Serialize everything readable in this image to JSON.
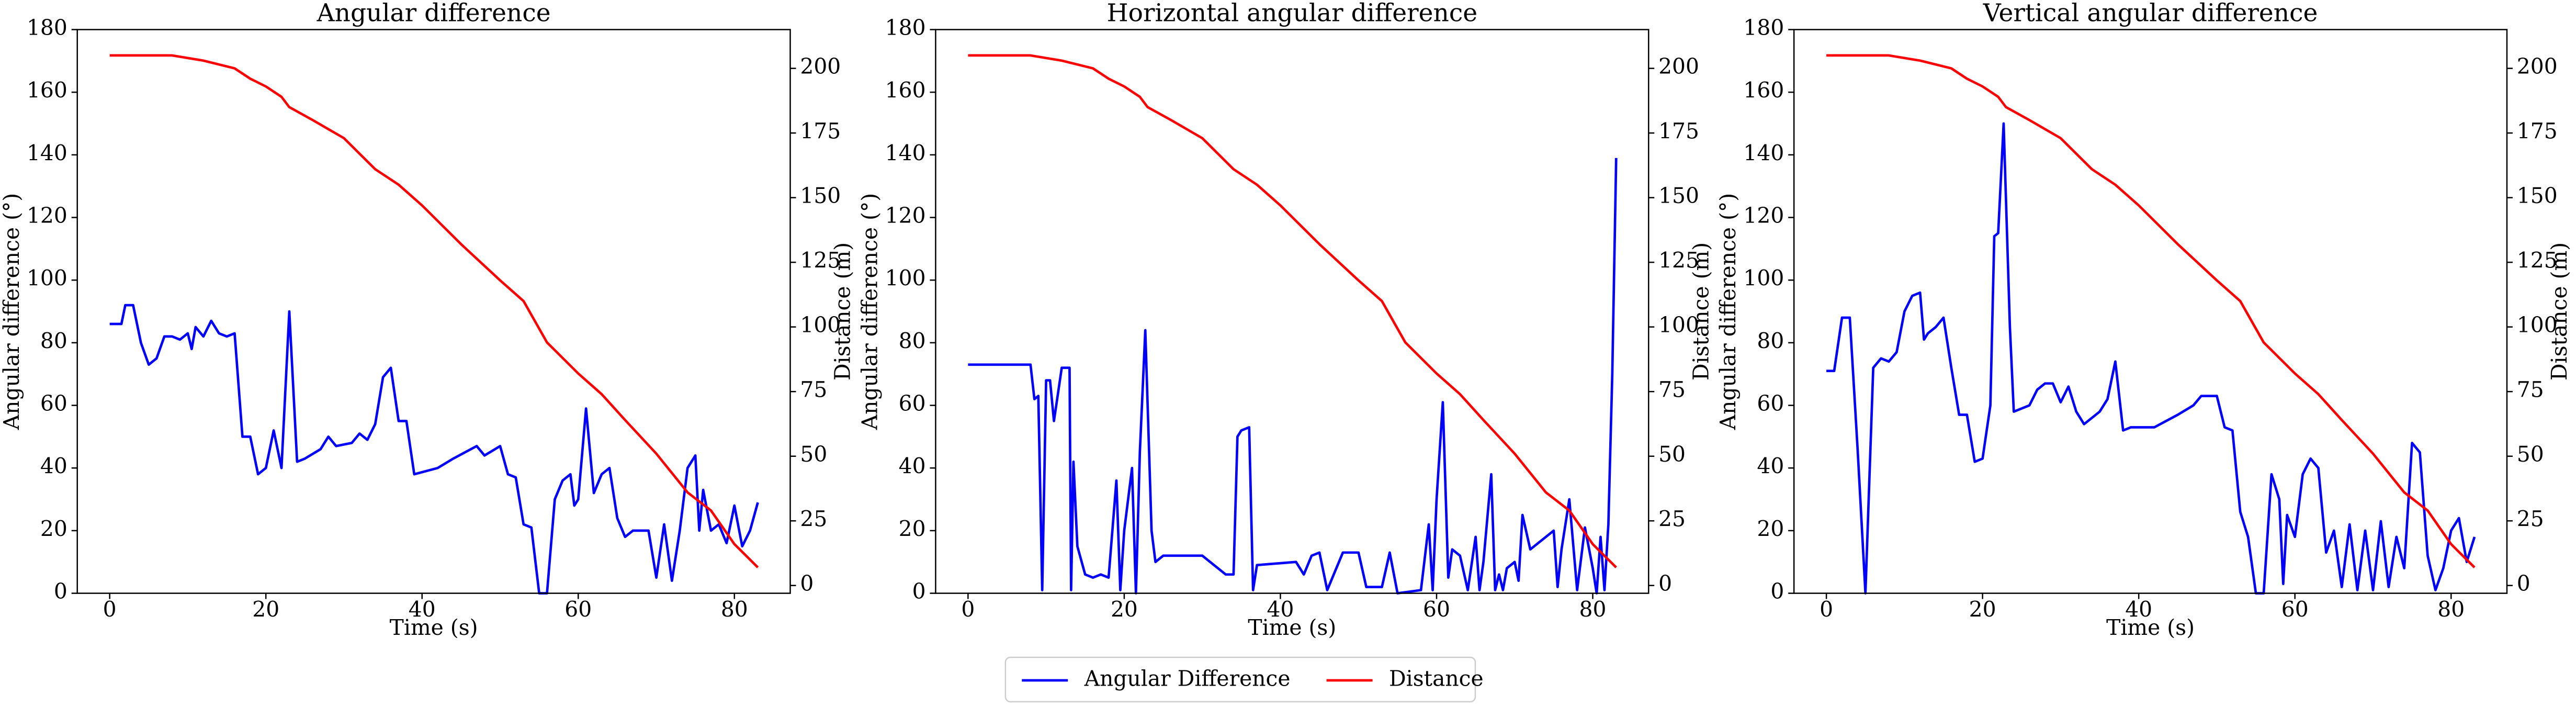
{
  "chart_data": [
    {
      "type": "line",
      "title": "Angular difference",
      "x_label": "Time (s)",
      "y_label": "Angular difference (°)",
      "y2_label": "Distance (m)",
      "xlim": [
        -4.15,
        87.15
      ],
      "xticks": [
        0,
        20,
        40,
        60,
        80
      ],
      "ylim": [
        0,
        180
      ],
      "yticks": [
        0,
        20,
        40,
        60,
        80,
        100,
        120,
        140,
        160,
        180
      ],
      "y2lim": [
        -3,
        215
      ],
      "y2ticks": [
        0,
        25,
        50,
        75,
        100,
        125,
        150,
        175,
        200
      ],
      "series": [
        {
          "name": "Angular Difference",
          "color": "#0000ff",
          "x": [
            0,
            1.5,
            2,
            3,
            4,
            5,
            6,
            7,
            8,
            9,
            10,
            10.5,
            11,
            12,
            13,
            14,
            15,
            16,
            17,
            18,
            19,
            20,
            21,
            22,
            23,
            24,
            25,
            27,
            28,
            29,
            31,
            32,
            33,
            34,
            35,
            36,
            37,
            38,
            39,
            42,
            44,
            47,
            48,
            50,
            51,
            52,
            53,
            54,
            55,
            56,
            57,
            58,
            59,
            59.5,
            60,
            61,
            62,
            63,
            64,
            65,
            66,
            67,
            69,
            70,
            71,
            72,
            73,
            74,
            75,
            75.5,
            76,
            77,
            78,
            79,
            80,
            81,
            82,
            83
          ],
          "values": [
            86,
            86,
            92,
            92,
            80,
            73,
            75,
            82,
            82,
            81,
            83,
            78,
            85,
            82,
            87,
            83,
            82,
            83,
            50,
            50,
            38,
            40,
            52,
            40,
            90,
            42,
            43,
            46,
            50,
            47,
            48,
            51,
            49,
            54,
            69,
            72,
            55,
            55,
            38,
            40,
            43,
            47,
            44,
            47,
            38,
            37,
            22,
            21,
            0,
            0,
            30,
            36,
            38,
            28,
            30,
            59,
            32,
            38,
            40,
            24,
            18,
            20,
            20,
            5,
            22,
            4,
            20,
            40,
            44,
            20,
            33,
            20,
            22,
            16,
            28,
            15,
            20,
            29
          ]
        },
        {
          "name": "Distance",
          "color": "#ff0000",
          "axis": "y2",
          "x": [
            0,
            8,
            12,
            16,
            18,
            20,
            22,
            23,
            26,
            30,
            34,
            37,
            40,
            45,
            50,
            53,
            56,
            60,
            63,
            66,
            70,
            74,
            77,
            80,
            83
          ],
          "values": [
            205,
            205,
            203,
            200,
            196,
            193,
            189,
            185,
            180,
            173,
            161,
            155,
            147,
            132,
            118,
            110,
            94,
            82,
            74,
            64,
            51,
            36,
            29,
            16,
            7
          ]
        }
      ]
    },
    {
      "type": "line",
      "title": "Horizontal angular difference",
      "x_label": "Time (s)",
      "y_label": "Angular difference (°)",
      "y2_label": "Distance (m)",
      "xlim": [
        -4.15,
        87.15
      ],
      "xticks": [
        0,
        20,
        40,
        60,
        80
      ],
      "ylim": [
        0,
        180
      ],
      "yticks": [
        0,
        20,
        40,
        60,
        80,
        100,
        120,
        140,
        160,
        180
      ],
      "y2lim": [
        -3,
        215
      ],
      "y2ticks": [
        0,
        25,
        50,
        75,
        100,
        125,
        150,
        175,
        200
      ],
      "series": [
        {
          "name": "Angular Difference",
          "color": "#0000ff",
          "x": [
            0,
            8,
            8.5,
            9,
            9.5,
            10,
            10.5,
            11,
            12,
            13,
            13.2,
            13.5,
            14,
            15,
            16,
            17,
            18,
            19,
            19.5,
            20,
            21,
            21.5,
            22,
            22.7,
            23.5,
            24,
            25,
            30,
            33,
            34,
            34.5,
            35,
            36,
            36.5,
            37,
            42,
            43,
            44,
            45,
            46,
            47,
            48,
            49,
            50,
            51,
            53,
            54,
            55,
            58,
            59,
            59.5,
            60,
            60.8,
            61.5,
            62,
            63,
            64,
            65,
            65.5,
            66,
            67,
            67.5,
            68,
            68.5,
            69,
            70,
            70.5,
            71,
            72,
            73,
            75,
            75.5,
            76,
            77,
            78,
            79,
            80,
            80.5,
            81,
            81.5,
            82,
            82.5,
            83
          ],
          "values": [
            73,
            73,
            62,
            63,
            1,
            68,
            68,
            55,
            72,
            72,
            1,
            42,
            15,
            6,
            5,
            6,
            5,
            36,
            1,
            20,
            40,
            0,
            45,
            84,
            20,
            10,
            12,
            12,
            6,
            6,
            50,
            52,
            53,
            1,
            9,
            10,
            6,
            12,
            13,
            1,
            7,
            13,
            13,
            13,
            2,
            2,
            13,
            0,
            1,
            22,
            1,
            30,
            61,
            5,
            14,
            12,
            1,
            18,
            1,
            10,
            38,
            1,
            6,
            1,
            8,
            10,
            4,
            25,
            14,
            16,
            20,
            2,
            14,
            30,
            1,
            21,
            8,
            0,
            18,
            1,
            22,
            70,
            139
          ]
        },
        {
          "name": "Distance",
          "color": "#ff0000",
          "axis": "y2",
          "x": [
            0,
            8,
            12,
            16,
            18,
            20,
            22,
            23,
            26,
            30,
            34,
            37,
            40,
            45,
            50,
            53,
            56,
            60,
            63,
            66,
            70,
            74,
            77,
            80,
            83
          ],
          "values": [
            205,
            205,
            203,
            200,
            196,
            193,
            189,
            185,
            180,
            173,
            161,
            155,
            147,
            132,
            118,
            110,
            94,
            82,
            74,
            64,
            51,
            36,
            29,
            16,
            7
          ]
        }
      ]
    },
    {
      "type": "line",
      "title": "Vertical angular difference",
      "x_label": "Time (s)",
      "y_label": "Angular difference (°)",
      "y2_label": "Distance (m)",
      "xlim": [
        -4.15,
        87.15
      ],
      "xticks": [
        0,
        20,
        40,
        60,
        80
      ],
      "ylim": [
        0,
        180
      ],
      "yticks": [
        0,
        20,
        40,
        60,
        80,
        100,
        120,
        140,
        160,
        180
      ],
      "y2lim": [
        -3,
        215
      ],
      "y2ticks": [
        0,
        25,
        50,
        75,
        100,
        125,
        150,
        175,
        200
      ],
      "series": [
        {
          "name": "Angular Difference",
          "color": "#0000ff",
          "x": [
            0,
            1,
            2,
            3,
            4,
            5,
            6,
            7,
            8,
            9,
            10,
            11,
            12,
            12.5,
            13,
            14,
            15,
            16,
            17,
            18,
            19,
            20,
            21,
            21.5,
            22,
            22.7,
            23.5,
            24,
            25,
            26,
            27,
            28,
            29,
            30,
            31,
            32,
            33,
            35,
            36,
            37,
            38,
            39,
            42,
            45,
            47,
            48,
            50,
            51,
            52,
            53,
            54,
            55,
            56,
            57,
            58,
            58.5,
            59,
            60,
            61,
            62,
            63,
            64,
            65,
            66,
            67,
            68,
            69,
            70,
            71,
            72,
            73,
            74,
            75,
            76,
            77,
            78,
            79,
            80,
            81,
            82,
            83
          ],
          "values": [
            71,
            71,
            88,
            88,
            46,
            0,
            72,
            75,
            74,
            77,
            90,
            95,
            96,
            81,
            83,
            85,
            88,
            72,
            57,
            57,
            42,
            43,
            60,
            114,
            115,
            150,
            85,
            58,
            59,
            60,
            65,
            67,
            67,
            61,
            66,
            58,
            54,
            58,
            62,
            74,
            52,
            53,
            53,
            57,
            60,
            63,
            63,
            53,
            52,
            26,
            18,
            0,
            0,
            38,
            30,
            3,
            25,
            18,
            38,
            43,
            40,
            13,
            20,
            2,
            22,
            1,
            20,
            1,
            23,
            2,
            18,
            8,
            48,
            45,
            12,
            1,
            8,
            20,
            24,
            10,
            18
          ]
        },
        {
          "name": "Distance",
          "color": "#ff0000",
          "axis": "y2",
          "x": [
            0,
            8,
            12,
            16,
            18,
            20,
            22,
            23,
            26,
            30,
            34,
            37,
            40,
            45,
            50,
            53,
            56,
            60,
            63,
            66,
            70,
            74,
            77,
            80,
            83
          ],
          "values": [
            205,
            205,
            203,
            200,
            196,
            193,
            189,
            185,
            180,
            173,
            161,
            155,
            147,
            132,
            118,
            110,
            94,
            82,
            74,
            64,
            51,
            36,
            29,
            16,
            7
          ]
        }
      ]
    }
  ]
}
